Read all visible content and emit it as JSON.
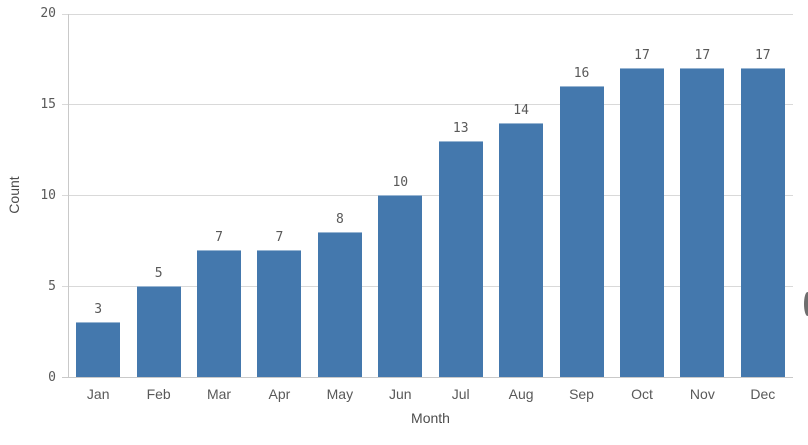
{
  "chart_data": {
    "type": "bar",
    "title": "",
    "categories": [
      "Jan",
      "Feb",
      "Mar",
      "Apr",
      "May",
      "Jun",
      "Jul",
      "Aug",
      "Sep",
      "Oct",
      "Nov",
      "Dec"
    ],
    "values": [
      3,
      5,
      7,
      7,
      8,
      10,
      13,
      14,
      16,
      17,
      17,
      17
    ],
    "value_labels": [
      "3",
      "5",
      "7",
      "7",
      "8",
      "10",
      "13",
      "14",
      "16",
      "17",
      "17",
      "17"
    ],
    "xlabel": "Month",
    "ylabel": "Count",
    "ylim": [
      0,
      20
    ],
    "yticks": [
      0,
      5,
      10,
      15,
      20
    ],
    "ytick_labels": [
      "0",
      "5",
      "10",
      "15",
      "20"
    ],
    "grid": "horizontal",
    "legend": "none",
    "value_labels_visible": true
  },
  "colors": {
    "bar": "#4478ad",
    "gridline": "#d9d9d9",
    "axis_line": "#c9c9c9",
    "tick_text": "#595959",
    "axis_title_text": "#4d4d4d",
    "background": "#ffffff",
    "edge_button": "#6e6e6e"
  }
}
